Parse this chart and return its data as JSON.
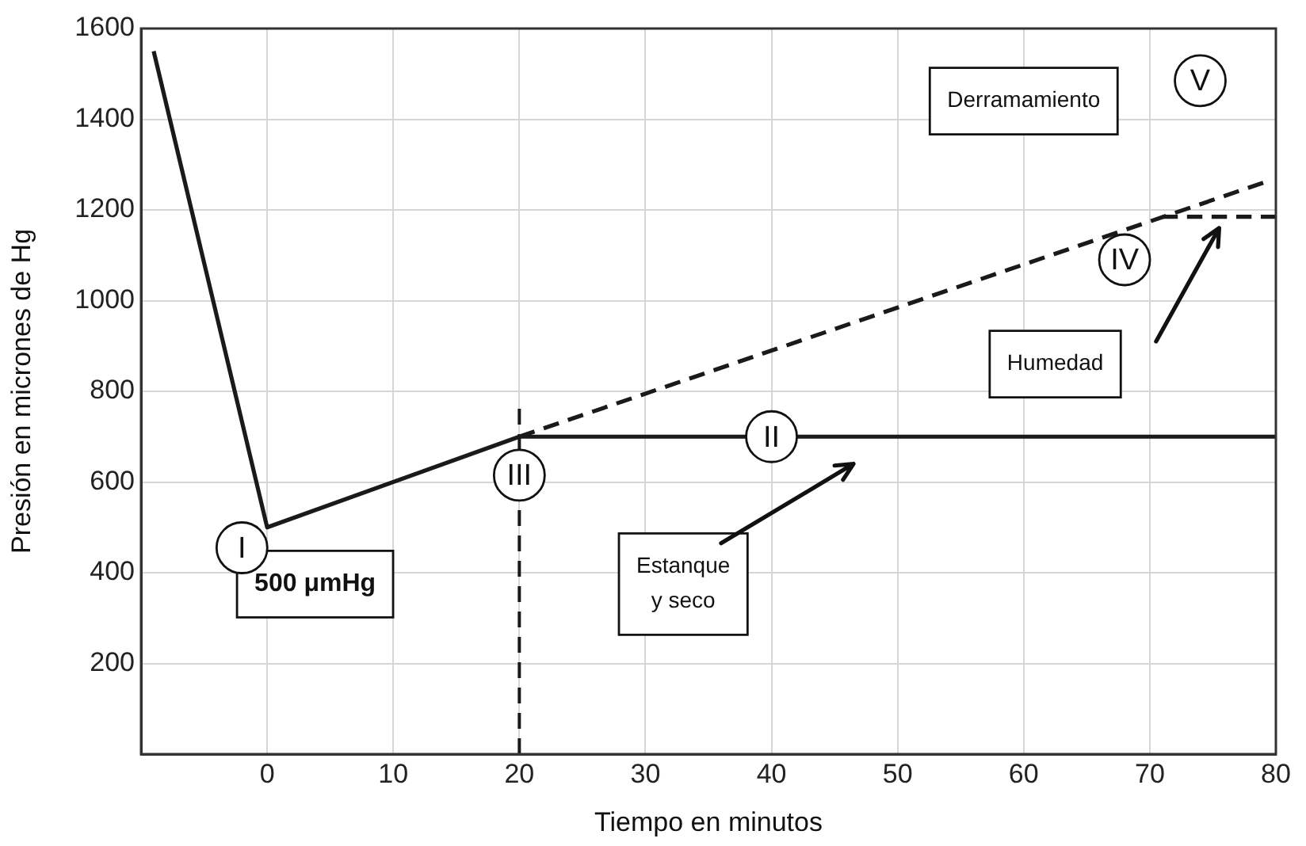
{
  "chart_data": {
    "type": "line",
    "xlabel": "Tiempo en minutos",
    "ylabel": "Presión en micrones de Hg",
    "xlim": [
      -10,
      80
    ],
    "xticks": [
      0,
      10,
      20,
      30,
      40,
      50,
      60,
      70,
      80
    ],
    "ylim": [
      0,
      1600
    ],
    "yticks": [
      {
        "value": 0,
        "label": null
      },
      200,
      400,
      600,
      800,
      1000,
      1200,
      1400,
      1600
    ],
    "grid": true,
    "legend": false,
    "marker": "none",
    "series": [
      {
        "color": "#1a1a1a",
        "line_style": "solid",
        "x": [
          -9,
          0,
          20,
          80
        ],
        "values": [
          1550,
          500,
          700,
          700
        ]
      },
      {
        "color": "#1a1a1a",
        "line_style": "dashed",
        "x": [
          20,
          79
        ],
        "values": [
          700,
          1260
        ]
      },
      {
        "color": "#1a1a1a",
        "line_style": "dashed",
        "x": [
          71,
          80
        ],
        "values": [
          1185,
          1185
        ]
      }
    ],
    "ref_lines": [
      {
        "axis": "x",
        "value": 20,
        "color": "#1a1a1a",
        "line_style": "dashed"
      }
    ],
    "annotations": [
      {
        "text": "I",
        "x": -2,
        "y": 455
      },
      {
        "text": "II",
        "x": 40,
        "y": 700
      },
      {
        "text": "III",
        "x": 20,
        "y": 615
      },
      {
        "text": "IV",
        "x": 68,
        "y": 1090
      },
      {
        "text": "V",
        "x": 74,
        "y": 1485
      },
      "500 μmHg",
      "Estanque\ny seco",
      "Humedad",
      "Derramamiento"
    ]
  }
}
